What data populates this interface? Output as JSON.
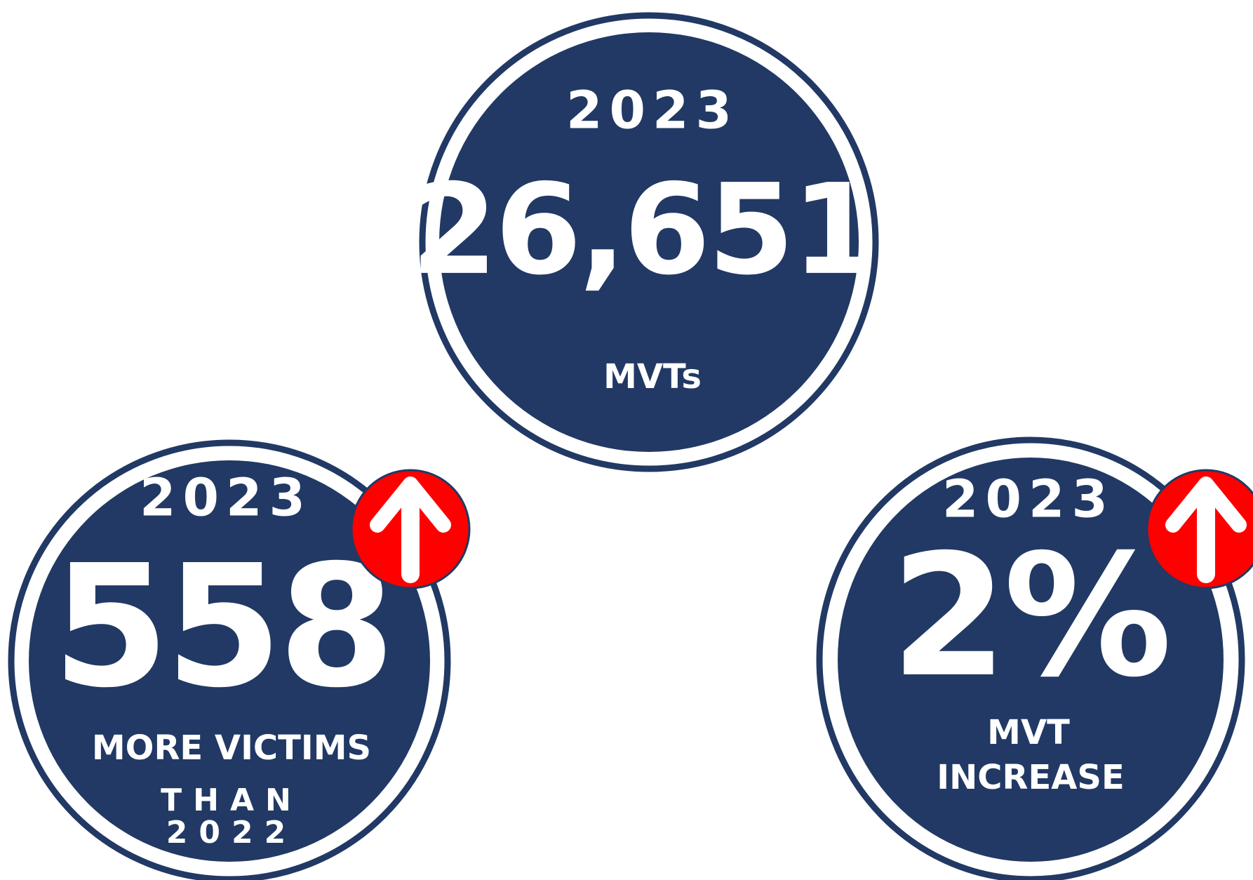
{
  "stats": [
    {
      "year": "2023",
      "value": "26,651",
      "label": [
        "MVTs"
      ]
    },
    {
      "year": "2023",
      "value": "558",
      "label": [
        "MORE VICTIMS",
        "THAN",
        "2022"
      ]
    },
    {
      "year": "2023",
      "value": "2%",
      "label": [
        "MVT",
        "INCREASE"
      ]
    }
  ]
}
